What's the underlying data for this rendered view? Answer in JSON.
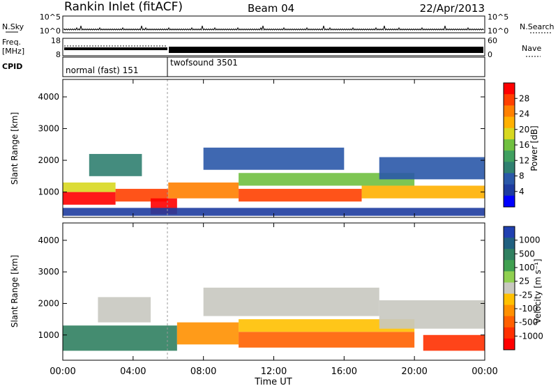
{
  "header": {
    "station": "Rankin Inlet (fitACF)",
    "beam": "Beam 04",
    "date": "22/Apr/2013"
  },
  "noise_panel": {
    "left_label": "N.Sky",
    "left_ticks": [
      "10^5",
      "10^0"
    ],
    "right_label": "N.Search",
    "right_ticks": [
      "10^5",
      "10^0"
    ]
  },
  "freq_panel": {
    "left_label_1": "Freq.",
    "left_label_2": "[MHz]",
    "left_ticks": [
      "18",
      "8"
    ],
    "right_label": "Nave",
    "right_ticks": [
      "60",
      "0"
    ]
  },
  "cpid_panel": {
    "label": "CPID",
    "modes": [
      {
        "name": "normal (fast)",
        "id": "151",
        "start_hour": 0,
        "end_hour": 6.0
      },
      {
        "name": "twofsound",
        "id": "3501",
        "start_hour": 6.0,
        "end_hour": 24.0
      }
    ]
  },
  "axis": {
    "ylabel": "Slant Range [km]",
    "xlabel": "Time UT",
    "xticks": [
      "00:00",
      "04:00",
      "08:00",
      "12:00",
      "16:00",
      "20:00",
      "00:00"
    ],
    "yticks": [
      "1000",
      "2000",
      "3000",
      "4000"
    ]
  },
  "chart_data": [
    {
      "type": "heatmap",
      "name": "power",
      "xlabel": "Time UT",
      "ylabel": "Slant Range [km]",
      "xlim_hours": [
        0,
        24
      ],
      "ylim_km": [
        200,
        4550
      ],
      "colorbar": {
        "label": "Power [dB]",
        "ticks": [
          "28",
          "24",
          "20",
          "16",
          "12",
          "8",
          "4"
        ],
        "colors": [
          "#ff0000",
          "#ff4000",
          "#ff8000",
          "#ffb000",
          "#d8d820",
          "#70c040",
          "#40a060",
          "#308070",
          "#2a58a8",
          "#1e3ca0",
          "#0000ff"
        ]
      },
      "bands": [
        {
          "hour_start": 0.0,
          "hour_end": 3.0,
          "range_low": 600,
          "range_high": 1000,
          "level": 0
        },
        {
          "hour_start": 0.0,
          "hour_end": 3.0,
          "range_low": 1000,
          "range_high": 1300,
          "level": 4
        },
        {
          "hour_start": 1.5,
          "hour_end": 4.5,
          "range_low": 1500,
          "range_high": 2200,
          "level": 7
        },
        {
          "hour_start": 3.0,
          "hour_end": 6.0,
          "range_low": 700,
          "range_high": 1100,
          "level": 1
        },
        {
          "hour_start": 5.0,
          "hour_end": 6.5,
          "range_low": 300,
          "range_high": 800,
          "level": 0
        },
        {
          "hour_start": 6.0,
          "hour_end": 10.0,
          "range_low": 800,
          "range_high": 1300,
          "level": 2
        },
        {
          "hour_start": 8.0,
          "hour_end": 16.0,
          "range_low": 1700,
          "range_high": 2400,
          "level": 8
        },
        {
          "hour_start": 10.0,
          "hour_end": 17.0,
          "range_low": 700,
          "range_high": 1100,
          "level": 1
        },
        {
          "hour_start": 10.0,
          "hour_end": 20.0,
          "range_low": 1200,
          "range_high": 1600,
          "level": 5
        },
        {
          "hour_start": 17.0,
          "hour_end": 24.0,
          "range_low": 800,
          "range_high": 1200,
          "level": 3
        },
        {
          "hour_start": 18.0,
          "hour_end": 24.0,
          "range_low": 1400,
          "range_high": 2100,
          "level": 8
        },
        {
          "hour_start": 0.0,
          "hour_end": 24.0,
          "range_low": 250,
          "range_high": 500,
          "level": 9
        }
      ]
    },
    {
      "type": "heatmap",
      "name": "velocity",
      "xlabel": "Time UT",
      "ylabel": "Slant Range [km]",
      "xlim_hours": [
        0,
        24
      ],
      "ylim_km": [
        200,
        4550
      ],
      "colorbar": {
        "label": "Velocity [m s⁻¹]",
        "ticks": [
          "1000",
          "500",
          "100",
          "25",
          "-25",
          "-100",
          "-500",
          "-1000"
        ],
        "colors": [
          "#2040b0",
          "#206080",
          "#308060",
          "#40a050",
          "#90d050",
          "#c8c8c0",
          "#ffc000",
          "#ff9000",
          "#ff6000",
          "#ff3000",
          "#ff0000"
        ]
      },
      "bands": [
        {
          "hour_start": 0.0,
          "hour_end": 6.5,
          "range_low": 500,
          "range_high": 1300,
          "level": 2
        },
        {
          "hour_start": 2.0,
          "hour_end": 5.0,
          "range_low": 1400,
          "range_high": 2200,
          "level": 5
        },
        {
          "hour_start": 6.5,
          "hour_end": 10.0,
          "range_low": 700,
          "range_high": 1400,
          "level": 7
        },
        {
          "hour_start": 8.0,
          "hour_end": 18.0,
          "range_low": 1600,
          "range_high": 2500,
          "level": 5
        },
        {
          "hour_start": 10.0,
          "hour_end": 20.0,
          "range_low": 600,
          "range_high": 1100,
          "level": 8
        },
        {
          "hour_start": 10.0,
          "hour_end": 20.0,
          "range_low": 1100,
          "range_high": 1500,
          "level": 6
        },
        {
          "hour_start": 18.0,
          "hour_end": 24.0,
          "range_low": 1200,
          "range_high": 2100,
          "level": 5
        },
        {
          "hour_start": 20.5,
          "hour_end": 24.0,
          "range_low": 500,
          "range_high": 1000,
          "level": 9
        }
      ]
    }
  ]
}
